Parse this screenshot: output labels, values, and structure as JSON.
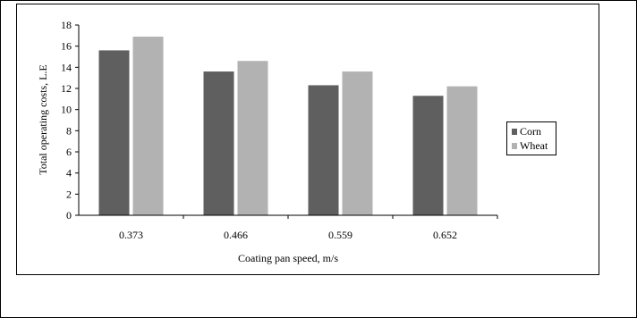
{
  "chart_data": {
    "type": "bar",
    "categories": [
      "0.373",
      "0.466",
      "0.559",
      "0.652"
    ],
    "series": [
      {
        "name": "Corn",
        "values": [
          15.6,
          13.6,
          12.3,
          11.3
        ],
        "color": "#5f5f5f"
      },
      {
        "name": "Wheat",
        "values": [
          16.9,
          14.6,
          13.6,
          12.2
        ],
        "color": "#b2b2b2"
      }
    ],
    "xlabel": "Coating pan speed, m/s",
    "ylabel": "Total operating costs, L.E",
    "ylim": [
      0,
      18
    ],
    "yticks": [
      "0",
      "2",
      "4",
      "6",
      "8",
      "10",
      "12",
      "14",
      "16",
      "18"
    ],
    "grid": false,
    "legend_position": "right"
  }
}
